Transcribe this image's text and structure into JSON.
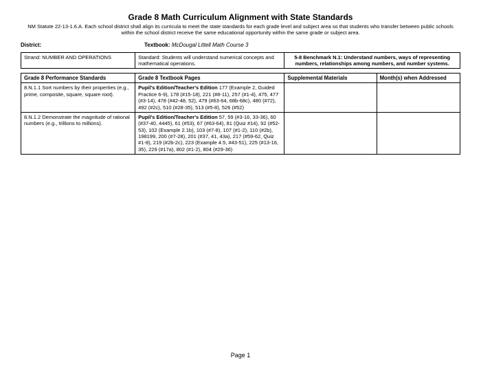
{
  "header": {
    "title": "Grade 8 Math Curriculum Alignment with State Standards",
    "subtitle": "NM Statute 22-13-1.6.A. Each school district shall align its curricula to meet the state standards for each grade level and subject area so that students who transfer between public schools within the school district receive the same educational opportunity within the same grade or subject area."
  },
  "meta": {
    "district_label": "District:",
    "textbook_label": "Textbook:",
    "textbook_value": "McDougal Littell Math Course 3"
  },
  "strand": {
    "label": "Strand: NUMBER AND OPERATIONS",
    "standard": "Standard: Students will understand numerical concepts and mathematical operations.",
    "benchmark": "5-8 Benchmark N.1: Understand numbers, ways of representing numbers, relationships among numbers, and number systems."
  },
  "table": {
    "headers": {
      "c1": "Grade 8 Performance Standards",
      "c2": "Grade 8 Textbook Pages",
      "c3": "Supplemental Materials",
      "c4": "Month(s) when Addressed"
    },
    "rows": [
      {
        "standard": "8.N.1.1  Sort numbers by their properties (e.g., prime, composite, square, square root).",
        "pages_bold": "Pupil's Edition/Teacher's Edition",
        "pages_rest": " 177 (Example 2, Guided Practice 6-9), 178 (#15-18), 221 (#8-11), 257 (#1-4), 475, 477 (#3-14), 478 (#42-48, 52), 479 (#63-64, 68b-68c), 480 (#72), 492 (#2c), 510 (#28-35), 513 (#5-8), 526 (#52)",
        "supp": "",
        "month": ""
      },
      {
        "standard": "8.N.1.2  Demonstrate the magnitude of rational numbers (e.g., trillions to millions).",
        "pages_bold": "Pupil's Edition/Teacher's Edition",
        "pages_rest": " 57, 59 (#3-16, 33-36), 60 (#37-40, 4445), 61 (#53), 67 (#63-64), 81 (Quiz #14), 92 (#52-53), 102 (Example 2.1b), 103 (#7-8), 107 (#1-2), 110 (#2b), 198199, 200 (#7-28), 201 (#37, 41, 43a), 217 (#59-62, Quiz #1-8), 219 (#2b-2c), 223 (Example 4.5, #43-51), 225 (#13-16, 35), 229 (#17a), 802 (#1-2), 804 (#29-36)",
        "supp": "",
        "month": ""
      }
    ]
  },
  "footer": {
    "page": "Page 1"
  }
}
